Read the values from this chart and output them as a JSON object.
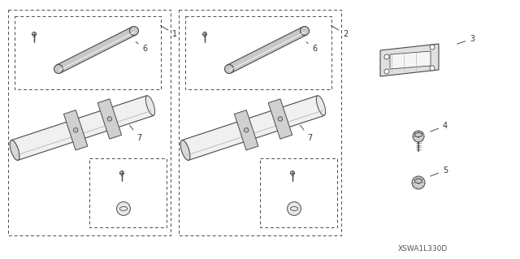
{
  "bg_color": "#ffffff",
  "line_color": "#4a4a4a",
  "label_color": "#333333",
  "diagram_code": "XSWA1L330D",
  "fig_width": 6.4,
  "fig_height": 3.19,
  "dpi": 100
}
